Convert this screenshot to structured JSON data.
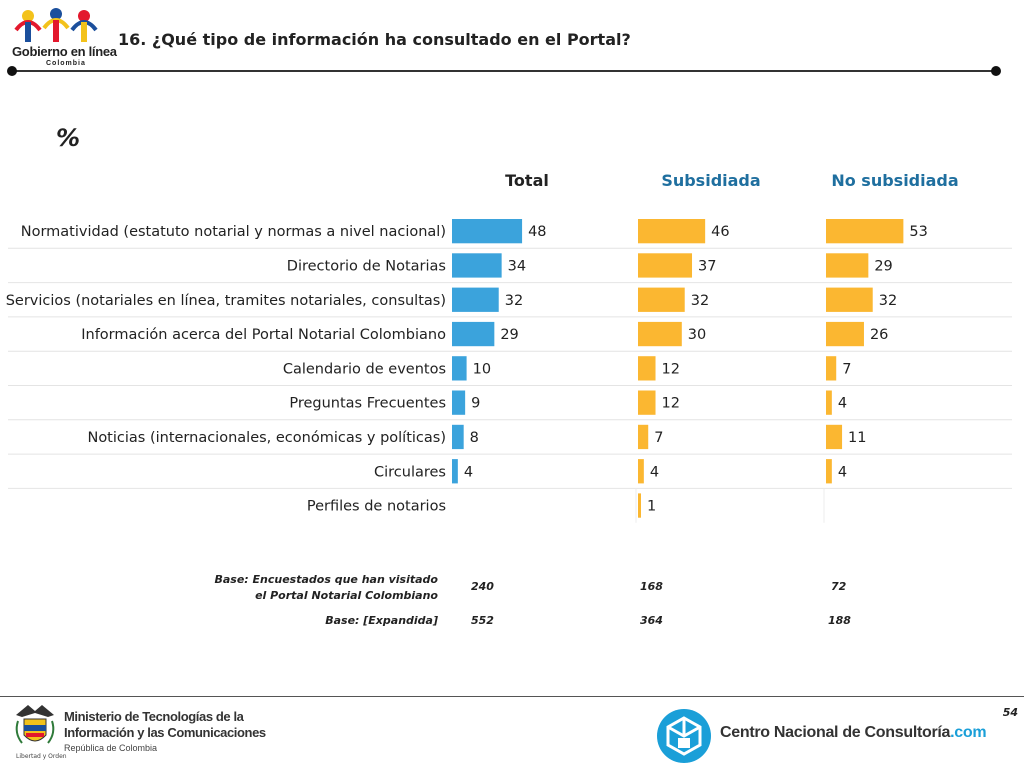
{
  "header": {
    "logo_name": "Gobierno en línea",
    "logo_country": "Colombia",
    "title": "16. ¿Qué tipo de información ha consultado en el Portal?"
  },
  "unit_label": "%",
  "colors": {
    "total": "#3ba3dc",
    "subsidiada": "#fbb731",
    "subsidiada_head": "#1f6f9f",
    "no_subsidiada_head": "#1f6f9f",
    "row_line": "#e4e4e4"
  },
  "chart_data": {
    "type": "bar",
    "orientation": "horizontal",
    "title": "16. ¿Qué tipo de información ha consultado en el Portal?",
    "unit": "%",
    "categories": [
      "Normatividad (estatuto notarial y normas a nivel nacional)",
      "Directorio de Notarias",
      "Servicios (notariales en línea, tramites notariales, consultas)",
      "Información acerca del Portal Notarial Colombiano",
      "Calendario de eventos",
      "Preguntas Frecuentes",
      "Noticias (internacionales, económicas y políticas)",
      "Circulares",
      "Perfiles de notarios"
    ],
    "series": [
      {
        "name": "Total",
        "values": [
          48,
          34,
          32,
          29,
          10,
          9,
          8,
          4,
          null
        ]
      },
      {
        "name": "Subsidiada",
        "values": [
          46,
          37,
          32,
          30,
          12,
          12,
          7,
          4,
          1
        ]
      },
      {
        "name": "No subsidiada",
        "values": [
          53,
          29,
          32,
          26,
          7,
          4,
          11,
          4,
          null
        ]
      }
    ],
    "xlim": [
      0,
      100
    ]
  },
  "bases": [
    {
      "label_line1": "Base: Encuestados que han visitado",
      "label_line2": "el Portal Notarial Colombiano",
      "values": [
        "240",
        "168",
        "72"
      ]
    },
    {
      "label_line1": "Base: [Expandida]",
      "label_line2": "",
      "values": [
        "552",
        "364",
        "188"
      ]
    }
  ],
  "footer": {
    "ministry_line1": "Ministerio de Tecnologías de la",
    "ministry_line2": "Información y las Comunicaciones",
    "ministry_line3": "República de Colombia",
    "motto": "Libertad y Orden",
    "cnc_name": "Centro Nacional de Consultoría",
    "cnc_domain": ".com",
    "page_number": "54"
  }
}
